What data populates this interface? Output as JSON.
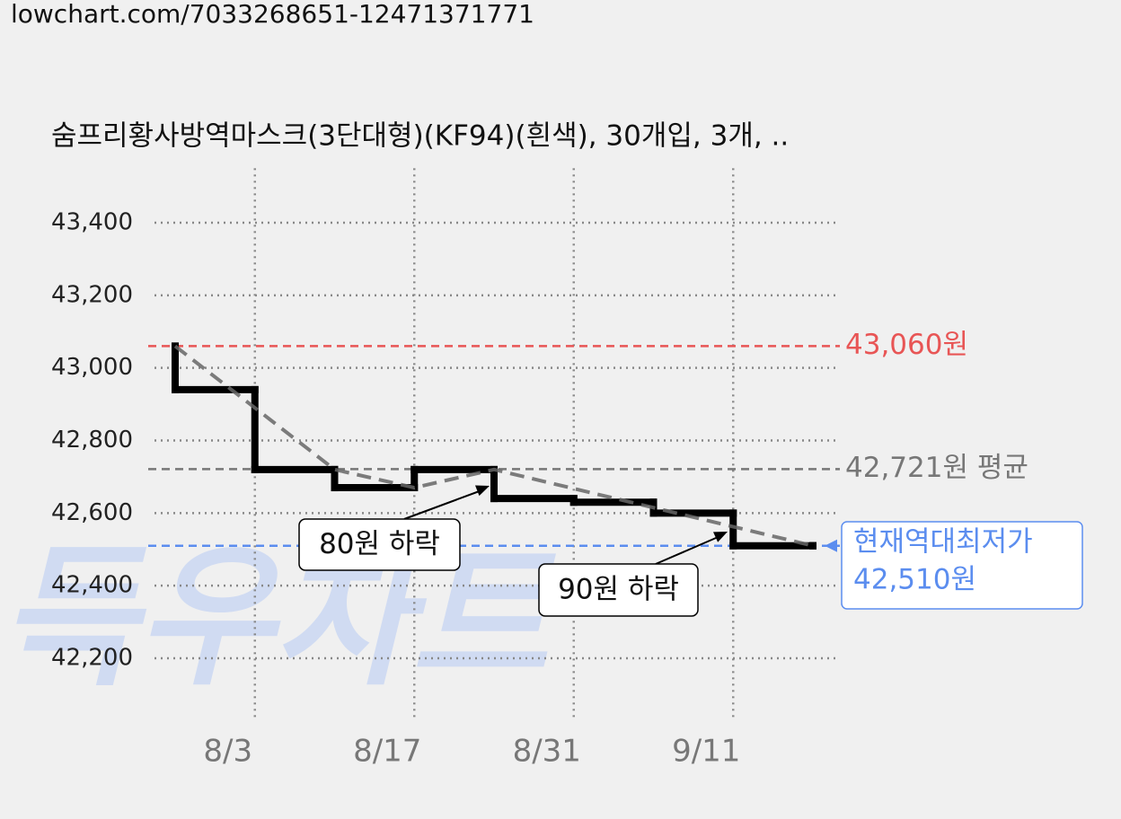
{
  "url": "lowchart.com/7033268651-12471371771",
  "chart_data": {
    "type": "step",
    "title": "숨프리황사방역마스크(3단대형)(KF94)(흰색), 30개입, 3개, ..",
    "watermark": "득우차트",
    "xlim": [
      0,
      8
    ],
    "xticks": [
      {
        "value": 1,
        "label": "8/3"
      },
      {
        "value": 3,
        "label": "8/17"
      },
      {
        "value": 5,
        "label": "8/31"
      },
      {
        "value": 7,
        "label": "9/11"
      }
    ],
    "ylim": [
      42030,
      43550
    ],
    "yticks": [
      {
        "value": 42200,
        "label": "42,200"
      },
      {
        "value": 42400,
        "label": "42,400"
      },
      {
        "value": 42600,
        "label": "42,600"
      },
      {
        "value": 42800,
        "label": "42,800"
      },
      {
        "value": 43000,
        "label": "43,000"
      },
      {
        "value": 43200,
        "label": "43,200"
      },
      {
        "value": 43400,
        "label": "43,400"
      }
    ],
    "grid": true,
    "series": [
      {
        "color": "#000000",
        "x": [
          0,
          0,
          1,
          2,
          3,
          4,
          5,
          6,
          7,
          8
        ],
        "values": [
          43060,
          42940,
          42720,
          42670,
          42720,
          42640,
          42630,
          42600,
          42510,
          42510
        ]
      },
      {
        "color": "#666666",
        "x": [
          0,
          2,
          3,
          4,
          8
        ],
        "values": [
          43060,
          42720,
          42670,
          42720,
          42510
        ]
      }
    ],
    "reference_lines": [
      {
        "value": 43060,
        "label": "43,060원",
        "color": "#e85555"
      },
      {
        "value": 42721,
        "label": "42,721원 평균",
        "color": "#777777"
      },
      {
        "value": 42510,
        "note": "현재역대최저가",
        "label": "42,510원",
        "color": "#5b8def"
      }
    ],
    "annotations": [
      "80원 하락",
      "90원 하락"
    ]
  }
}
